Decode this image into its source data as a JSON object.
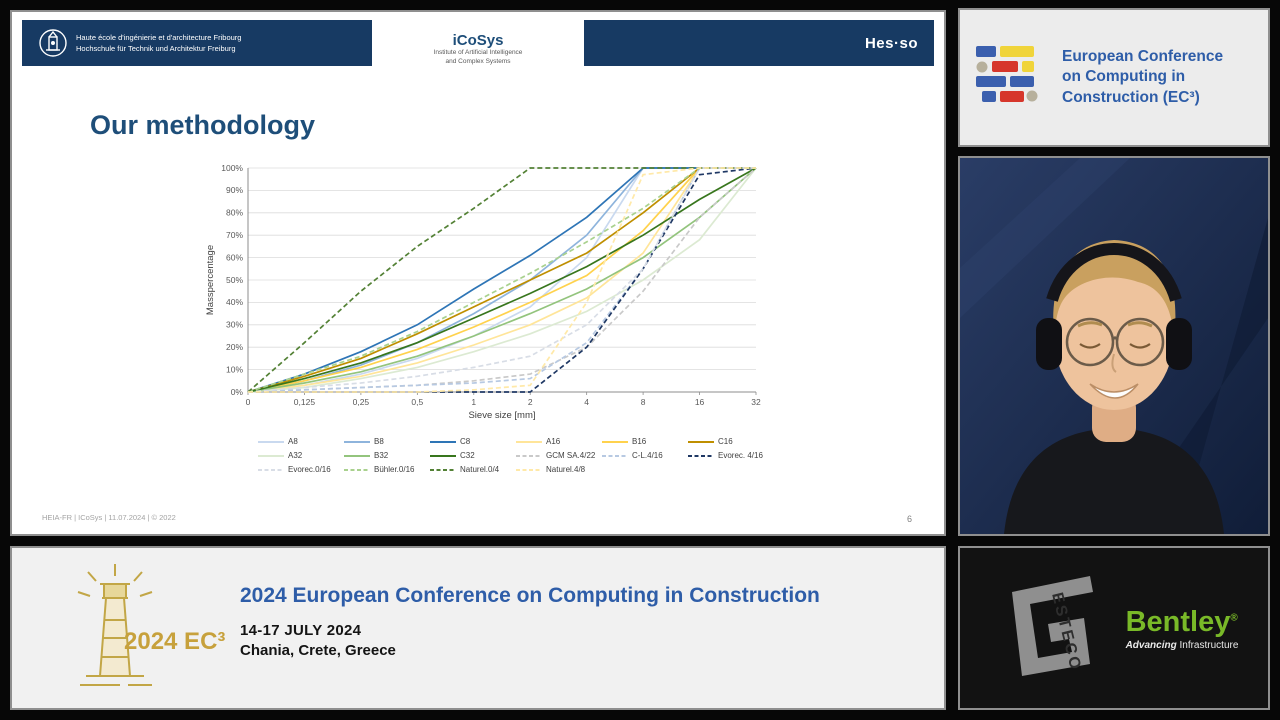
{
  "slide": {
    "header": {
      "school_line1": "Haute école d'ingénierie et d'architecture Fribourg",
      "school_line2": "Hochschule für Technik und Architektur Freiburg",
      "icosys_title": "iCoSys",
      "icosys_subtitle1": "Institute of Artificial Intelligence",
      "icosys_subtitle2": "and Complex Systems",
      "hesso_logo": "Hes·so"
    },
    "title": "Our methodology",
    "footer_left": "HEIA-FR  | ICoSys | 11.07.2024 | © 2022",
    "page_number": "6"
  },
  "chart_data": {
    "type": "line",
    "title": "",
    "xlabel": "Sieve size [mm]",
    "ylabel": "Masspercentage",
    "x_ticks": [
      "0",
      "0,125",
      "0,25",
      "0,5",
      "1",
      "2",
      "4",
      "8",
      "16",
      "32"
    ],
    "y_ticks": [
      "0%",
      "10%",
      "20%",
      "30%",
      "40%",
      "50%",
      "60%",
      "70%",
      "80%",
      "90%",
      "100%"
    ],
    "ylim": [
      0,
      100
    ],
    "grid": "horizontal",
    "legend_position": "bottom",
    "series": [
      {
        "name": "A8",
        "color": "#c9d9ef",
        "dash": null,
        "values": [
          0,
          3,
          8,
          15,
          25,
          38,
          60,
          100,
          100,
          100
        ]
      },
      {
        "name": "B8",
        "color": "#8eb4dc",
        "dash": null,
        "values": [
          0,
          5,
          12,
          22,
          35,
          50,
          70,
          100,
          100,
          100
        ]
      },
      {
        "name": "C8",
        "color": "#2e75b6",
        "dash": null,
        "values": [
          0,
          8,
          18,
          30,
          46,
          61,
          78,
          100,
          100,
          100
        ]
      },
      {
        "name": "A16",
        "color": "#ffe599",
        "dash": null,
        "values": [
          0,
          3,
          7,
          13,
          21,
          30,
          42,
          62,
          100,
          100
        ]
      },
      {
        "name": "B16",
        "color": "#ffd24d",
        "dash": null,
        "values": [
          0,
          5,
          11,
          19,
          29,
          40,
          52,
          72,
          100,
          100
        ]
      },
      {
        "name": "C16",
        "color": "#bf8f00",
        "dash": null,
        "values": [
          0,
          7,
          15,
          26,
          38,
          50,
          62,
          80,
          100,
          100
        ]
      },
      {
        "name": "A32",
        "color": "#dcead2",
        "dash": null,
        "values": [
          0,
          2,
          6,
          11,
          18,
          26,
          36,
          50,
          68,
          100
        ]
      },
      {
        "name": "B32",
        "color": "#93c47d",
        "dash": null,
        "values": [
          0,
          4,
          9,
          16,
          25,
          35,
          46,
          60,
          78,
          100
        ]
      },
      {
        "name": "C32",
        "color": "#38761d",
        "dash": null,
        "values": [
          0,
          6,
          13,
          22,
          33,
          44,
          56,
          70,
          86,
          100
        ]
      },
      {
        "name": "GCM SA.4/22",
        "color": "#c9c9c9",
        "dash": "5,3",
        "values": [
          0,
          1,
          2,
          3,
          5,
          8,
          20,
          45,
          78,
          100
        ]
      },
      {
        "name": "C-L.4/16",
        "color": "#b7c9e2",
        "dash": "5,3",
        "values": [
          0,
          1,
          2,
          3,
          4,
          6,
          22,
          55,
          100,
          100
        ]
      },
      {
        "name": "Evorec. 4/16",
        "color": "#1f3864",
        "dash": "5,3",
        "values": [
          0,
          0,
          0,
          0,
          0,
          0,
          20,
          55,
          97,
          100
        ]
      },
      {
        "name": "Evorec.0/16",
        "color": "#d8dde6",
        "dash": "5,3",
        "values": [
          0,
          2,
          4,
          7,
          11,
          16,
          30,
          55,
          100,
          100
        ]
      },
      {
        "name": "Bühler.0/16",
        "color": "#a9d18e",
        "dash": "5,3",
        "values": [
          0,
          8,
          16,
          27,
          40,
          53,
          67,
          82,
          100,
          100
        ]
      },
      {
        "name": "Naturel.0/4",
        "color": "#538135",
        "dash": "5,3",
        "values": [
          0,
          22,
          45,
          65,
          82,
          100,
          100,
          100,
          100,
          100
        ]
      },
      {
        "name": "Naturel.4/8",
        "color": "#ffe9a8",
        "dash": "5,3",
        "values": [
          0,
          0,
          0,
          0,
          1,
          3,
          40,
          97,
          100,
          100
        ]
      }
    ]
  },
  "ec3_panel": {
    "title": "European Conference on Computing in Construction (EC³)"
  },
  "banner": {
    "logo_year": "2024 EC³",
    "title": "2024 European Conference on Computing in Construction",
    "dates": "14-17 JULY 2024",
    "location": "Chania, Crete, Greece"
  },
  "sponsors": {
    "esteco": "ESTECO",
    "bentley": "Bentley",
    "bentley_reg": "®",
    "bentley_tagline_bold": "Advancing",
    "bentley_tagline": "Infrastructure"
  },
  "colors": {
    "accent_blue": "#2e5da8",
    "header_navy": "#173a63",
    "gold": "#c7a13c",
    "bentley_green": "#79b928"
  }
}
